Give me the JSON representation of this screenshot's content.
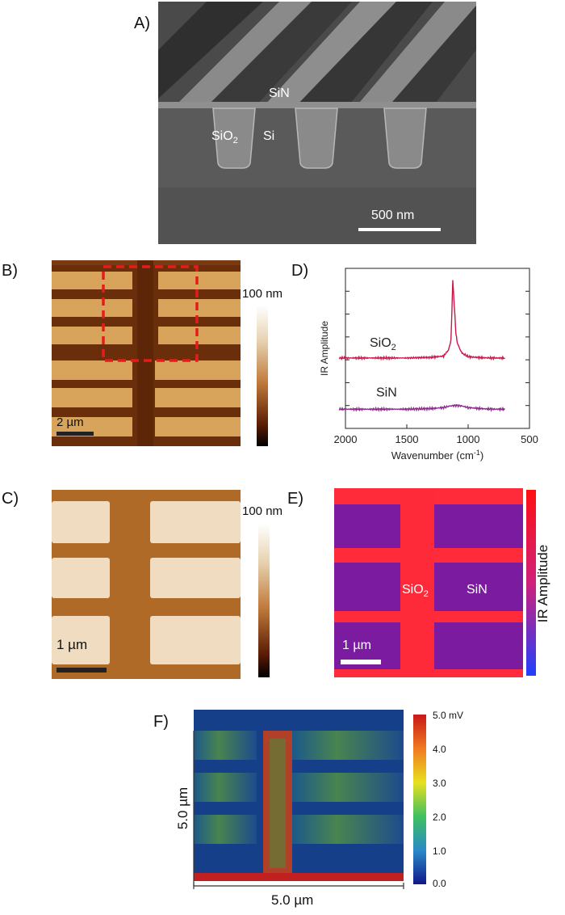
{
  "panels": {
    "A": {
      "label": "A)",
      "material_top": "SiN",
      "material_left": "SiO",
      "material_left_sub": "2",
      "material_right": "Si",
      "scale_label": "500 nm"
    },
    "B": {
      "label": "B)",
      "scale_label": "2 µm",
      "colorbar_label": "100 nm"
    },
    "C": {
      "label": "C)",
      "scale_label": "1 µm",
      "colorbar_label": "100 nm"
    },
    "D": {
      "label": "D)",
      "series_sio2_label": "SiO",
      "series_sio2_sub": "2",
      "series_sin_label": "SiN"
    },
    "E": {
      "label": "E)",
      "left_label": "SiO",
      "left_label_sub": "2",
      "right_label": "SiN",
      "scale_label": "1 µm",
      "colorbar_label": "IR Amplitude"
    },
    "F": {
      "label": "F)",
      "y_label": "5.0 µm",
      "x_label": "5.0 µm",
      "colorbar_ticks": [
        "5.0 mV",
        "4.0",
        "3.0",
        "2.0",
        "1.0",
        "0.0"
      ]
    }
  },
  "chart_data": {
    "type": "line",
    "xlabel": "Wavenumber (cm",
    "xlabel_sup": "-1",
    "xlabel_end": ")",
    "ylabel": "IR Amplitude",
    "xlim": [
      2000,
      500
    ],
    "x_ticks": [
      "2000",
      "1500",
      "1000",
      "500"
    ],
    "series": [
      {
        "name": "SiO2",
        "color": "#c8184a",
        "x": [
          2050,
          1800,
          1500,
          1300,
          1200,
          1160,
          1140,
          1125,
          1115,
          1100,
          1090,
          1070,
          1050,
          1000,
          900,
          800,
          700
        ],
        "values": [
          0.2,
          0.2,
          0.2,
          0.22,
          0.26,
          0.45,
          0.75,
          2.6,
          2.0,
          1.0,
          0.7,
          0.5,
          0.35,
          0.24,
          0.21,
          0.2,
          0.2
        ]
      },
      {
        "name": "SiN",
        "color": "#8a2a8a",
        "x": [
          2050,
          1800,
          1500,
          1300,
          1200,
          1150,
          1100,
          1050,
          1000,
          900,
          800,
          700
        ],
        "values": [
          -1.4,
          -1.4,
          -1.4,
          -1.38,
          -1.35,
          -1.3,
          -1.28,
          -1.3,
          -1.35,
          -1.38,
          -1.4,
          -1.4
        ]
      }
    ]
  },
  "colors": {
    "afm_bg": "#6a2e0a",
    "afm_pad": "#d8a35a",
    "e_bg": "#7b1ba0",
    "e_red": "#ff2030",
    "roi_box": "#e51c1c"
  }
}
